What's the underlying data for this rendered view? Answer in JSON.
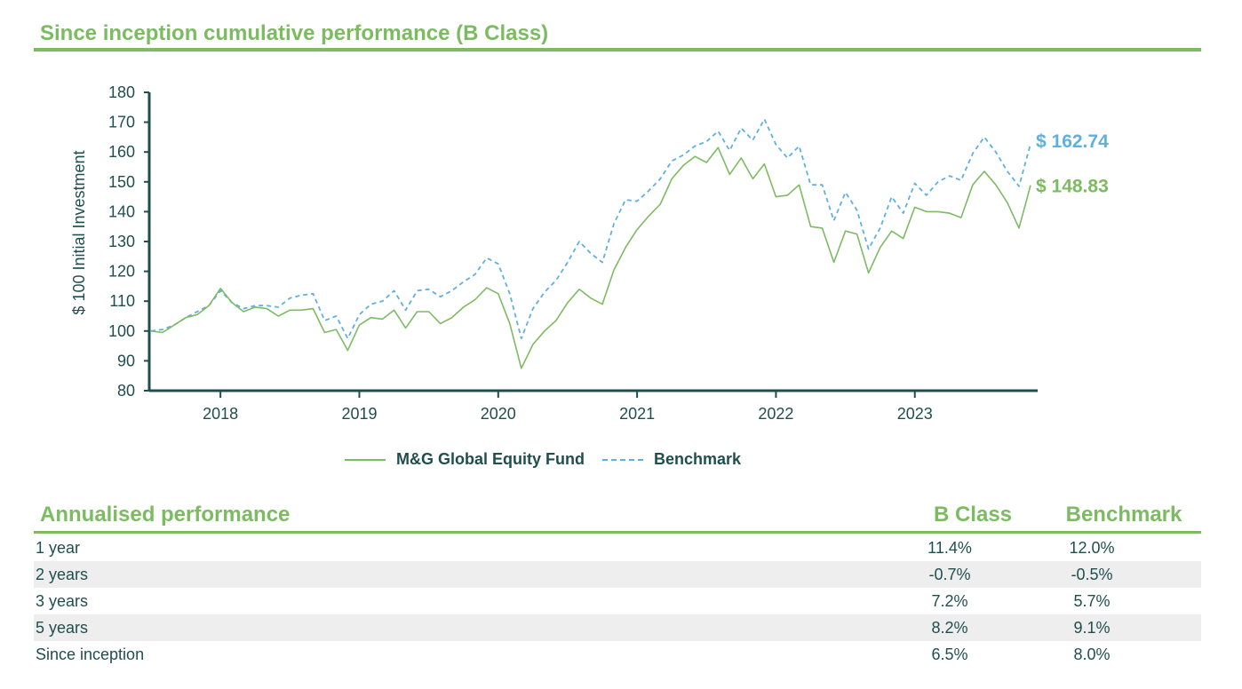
{
  "page": {
    "title": "Since inception cumulative performance (B Class)"
  },
  "chart_data": {
    "type": "line",
    "ylabel": "$ 100 Initial Investment",
    "ylim": [
      80,
      180
    ],
    "yticks": [
      80,
      90,
      100,
      110,
      120,
      130,
      140,
      150,
      160,
      170,
      180
    ],
    "xticks": [
      "2018",
      "2019",
      "2020",
      "2021",
      "2022",
      "2023"
    ],
    "x_start": "2017-07",
    "x_end": "2023-11",
    "grid": false,
    "legend_position": "bottom",
    "series": [
      {
        "name": "M&G Global Equity Fund",
        "color": "#7dbb63",
        "style": "solid",
        "end_label": "$ 148.83",
        "values": [
          100,
          99.5,
          102,
          104.5,
          105.5,
          108.5,
          114.3,
          109.5,
          106.5,
          108,
          107.5,
          105,
          107,
          107,
          107.5,
          99.5,
          100.5,
          93.5,
          102,
          104.5,
          104,
          107,
          101,
          106.5,
          106.5,
          102.5,
          104.5,
          108,
          110.5,
          114.5,
          112.5,
          102.5,
          87.5,
          95.5,
          100,
          103.5,
          109.5,
          114,
          111,
          109,
          120.5,
          128,
          134,
          138.5,
          142.5,
          151,
          155.5,
          158.5,
          156.5,
          161.5,
          152.5,
          158,
          151,
          156,
          145,
          145.5,
          149,
          135,
          134.5,
          123,
          133.5,
          132.5,
          119.5,
          128,
          133.5,
          131,
          141.5,
          140,
          140,
          139.5,
          138,
          149,
          153.5,
          149,
          143,
          134.5,
          148.83
        ]
      },
      {
        "name": "Benchmark",
        "color": "#5fb0e0",
        "style": "dashed",
        "end_label": "$ 162.74",
        "values": [
          100,
          100.5,
          102,
          104.5,
          106.5,
          108.5,
          113.5,
          109.5,
          107.5,
          108.5,
          108.5,
          108,
          111,
          112,
          112.5,
          103.5,
          105,
          97.5,
          105.5,
          109,
          110,
          113.5,
          107,
          113.5,
          114,
          111.5,
          113.5,
          116.5,
          119,
          124.5,
          122.5,
          112.5,
          97.5,
          107.5,
          113,
          117,
          123,
          130,
          126,
          123,
          136,
          144,
          143.5,
          147,
          151,
          157,
          159,
          162,
          163.5,
          167,
          160.5,
          168,
          164,
          171,
          162.5,
          158,
          162,
          149,
          149,
          137,
          146.5,
          140.5,
          127.5,
          134.5,
          145,
          139.5,
          149.5,
          145.5,
          150,
          152,
          150.5,
          159.5,
          165,
          160,
          153.5,
          148.5,
          162.74
        ]
      }
    ]
  },
  "annualised": {
    "title": "Annualised performance",
    "col_b_class": "B Class",
    "col_benchmark": "Benchmark",
    "rows": [
      {
        "period": "1 year",
        "b_class": "11.4%",
        "benchmark": "12.0%"
      },
      {
        "period": "2 years",
        "b_class": "-0.7%",
        "benchmark": "-0.5%"
      },
      {
        "period": "3 years",
        "b_class": "7.2%",
        "benchmark": "5.7%"
      },
      {
        "period": "5 years",
        "b_class": "8.2%",
        "benchmark": "9.1%"
      },
      {
        "period": "Since inception",
        "b_class": "6.5%",
        "benchmark": "8.0%"
      }
    ]
  }
}
